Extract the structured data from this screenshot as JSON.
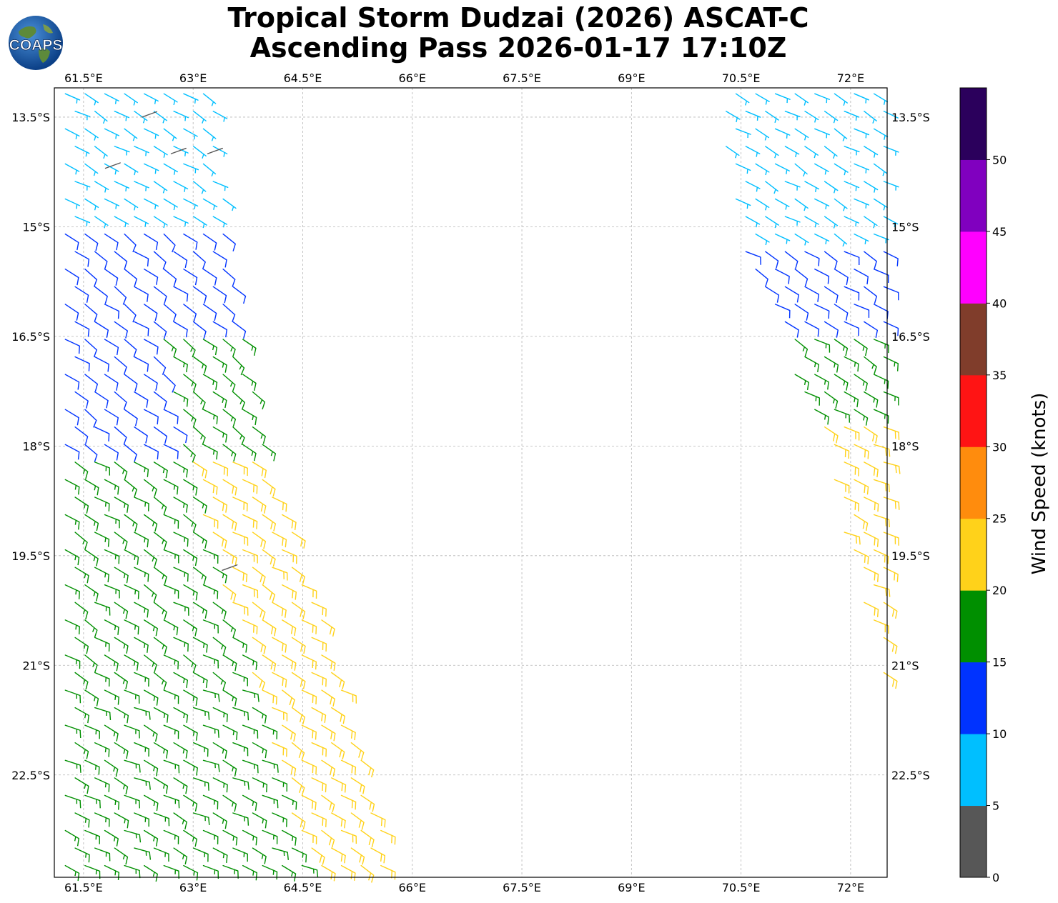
{
  "header": {
    "title_line1": "Tropical Storm Dudzai (2026) ASCAT-C",
    "title_line2": "Ascending Pass 2026-01-17 17:10Z",
    "logo_text": "COAPS"
  },
  "map": {
    "lon_ticks": [
      "61.5°E",
      "63°E",
      "64.5°E",
      "66°E",
      "67.5°E",
      "69°E",
      "70.5°E",
      "72°E"
    ],
    "lon_values": [
      61.5,
      63,
      64.5,
      66,
      67.5,
      69,
      70.5,
      72
    ],
    "lat_ticks": [
      "13.5°S",
      "15°S",
      "16.5°S",
      "18°S",
      "19.5°S",
      "21°S",
      "22.5°S"
    ],
    "lat_values": [
      -13.5,
      -15,
      -16.5,
      -18,
      -19.5,
      -21,
      -22.5
    ],
    "extent": {
      "lon_min": 61.1,
      "lon_max": 72.5,
      "lat_min": -23.9,
      "lat_max": -13.1
    },
    "gridlines": true
  },
  "colorbar": {
    "label": "Wind Speed (knots)",
    "ticks": [
      "0",
      "5",
      "10",
      "15",
      "20",
      "25",
      "30",
      "35",
      "40",
      "45",
      "50"
    ],
    "bins": [
      {
        "min": 0,
        "max": 5,
        "color": "#575757"
      },
      {
        "min": 5,
        "max": 10,
        "color": "#00bfff"
      },
      {
        "min": 10,
        "max": 15,
        "color": "#0033ff"
      },
      {
        "min": 15,
        "max": 20,
        "color": "#008f00"
      },
      {
        "min": 20,
        "max": 25,
        "color": "#ffd21a"
      },
      {
        "min": 25,
        "max": 30,
        "color": "#ff8c0d"
      },
      {
        "min": 30,
        "max": 35,
        "color": "#ff1414"
      },
      {
        "min": 35,
        "max": 40,
        "color": "#803d2b"
      },
      {
        "min": 40,
        "max": 45,
        "color": "#ff00ff"
      },
      {
        "min": 45,
        "max": 50,
        "color": "#8000bf"
      },
      {
        "min": 50,
        "max": 55,
        "color": "#2b005c"
      }
    ]
  },
  "chart_data": {
    "type": "wind-barb-map",
    "swaths": [
      {
        "name": "west",
        "edges": [
          [
            61.1,
            -13.1
          ],
          [
            63.3,
            -13.1
          ],
          [
            63.5,
            -15.1
          ],
          [
            64.0,
            -18.0
          ],
          [
            64.8,
            -20.5
          ],
          [
            65.8,
            -23.9
          ],
          [
            61.1,
            -23.9
          ]
        ],
        "zones": [
          {
            "lat_from": -13.1,
            "lat_to": -15.1,
            "speed_kt": 7,
            "dir_deg": 120
          },
          {
            "lat_from": -15.1,
            "lat_to": -17.0,
            "speed_kt": 12,
            "dir_deg": 125
          },
          {
            "lat_from": -17.0,
            "lat_to": -18.2,
            "speed_kt": 13,
            "dir_deg": 125
          },
          {
            "lat_from": -18.2,
            "lat_to": -21.2,
            "speed_kt": 18,
            "dir_deg": 120
          },
          {
            "lat_from": -21.2,
            "lat_to": -23.9,
            "speed_kt": 18,
            "dir_deg": 115
          }
        ],
        "east_edge_zones": [
          {
            "lat_from": -16.5,
            "lat_to": -18.2,
            "speed_kt": 17,
            "dir_deg": 125
          },
          {
            "lat_from": -18.2,
            "lat_to": -23.9,
            "speed_kt": 22,
            "dir_deg": 120
          }
        ],
        "calm_points": [
          [
            62.3,
            -13.5
          ],
          [
            61.8,
            -14.2
          ],
          [
            62.7,
            -14.0
          ],
          [
            63.2,
            -14.0
          ],
          [
            63.4,
            -19.7
          ]
        ]
      },
      {
        "name": "east",
        "edges": [
          [
            70.2,
            -13.1
          ],
          [
            72.5,
            -13.1
          ],
          [
            72.5,
            -21.4
          ],
          [
            71.6,
            -18.0
          ],
          [
            70.4,
            -15.0
          ],
          [
            70.2,
            -13.6
          ]
        ],
        "zones": [
          {
            "lat_from": -13.1,
            "lat_to": -15.3,
            "speed_kt": 8,
            "dir_deg": 120
          },
          {
            "lat_from": -15.3,
            "lat_to": -16.4,
            "speed_kt": 12,
            "dir_deg": 120
          },
          {
            "lat_from": -16.4,
            "lat_to": -17.6,
            "speed_kt": 17,
            "dir_deg": 120
          },
          {
            "lat_from": -17.6,
            "lat_to": -21.4,
            "speed_kt": 22,
            "dir_deg": 115
          }
        ]
      }
    ]
  }
}
